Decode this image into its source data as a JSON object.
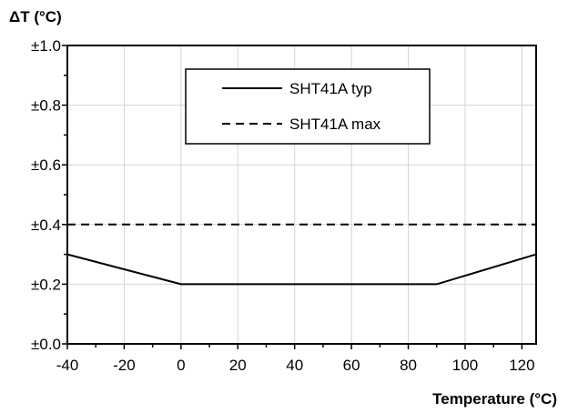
{
  "chart_data": {
    "type": "line",
    "ylabel": "ΔT (°C)",
    "xlabel": "Temperature (°C)",
    "xlim": [
      -40,
      125
    ],
    "ylim": [
      0,
      1.0
    ],
    "x_ticks": [
      -40,
      -20,
      0,
      20,
      40,
      60,
      80,
      100,
      120
    ],
    "x_tick_labels": [
      "-40",
      "-20",
      "0",
      "20",
      "40",
      "60",
      "80",
      "100",
      "120"
    ],
    "y_ticks": [
      0,
      0.2,
      0.4,
      0.6,
      0.8,
      1.0
    ],
    "y_tick_labels": [
      "±0.0",
      "±0.2",
      "±0.4",
      "±0.6",
      "±0.8",
      "±1.0"
    ],
    "grid": true,
    "legend_position": "top-center",
    "series": [
      {
        "name": "SHT41A typ",
        "style": "solid",
        "color": "#000000",
        "x": [
          -40,
          0,
          90,
          125
        ],
        "y": [
          0.3,
          0.2,
          0.2,
          0.3
        ]
      },
      {
        "name": "SHT41A max",
        "style": "dashed",
        "color": "#000000",
        "x": [
          -40,
          125
        ],
        "y": [
          0.4,
          0.4
        ]
      }
    ]
  }
}
